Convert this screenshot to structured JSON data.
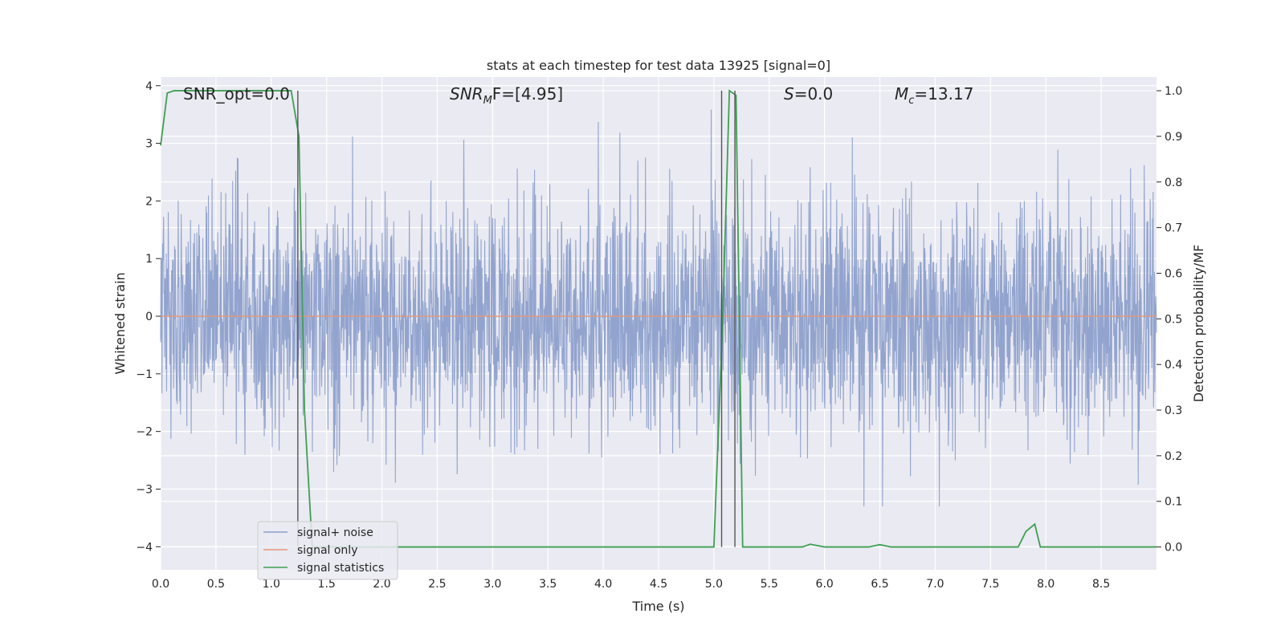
{
  "chart_data": {
    "type": "line",
    "title": "stats at each timestep for test data 13925 [signal=0]",
    "xlabel": "Time (s)",
    "ylabel": "Whitened strain",
    "ylabel_right": "Detection probability/MF",
    "xlim": [
      0,
      9.0
    ],
    "ylim": [
      -4.4,
      4.15
    ],
    "ylim_right": [
      -0.05,
      1.03
    ],
    "x_ticks": [
      "0.0",
      "0.5",
      "1.0",
      "1.5",
      "2.0",
      "2.5",
      "3.0",
      "3.5",
      "4.0",
      "4.5",
      "5.0",
      "5.5",
      "6.0",
      "6.5",
      "7.0",
      "7.5",
      "8.0",
      "8.5"
    ],
    "y_ticks": [
      "4",
      "3",
      "2",
      "1",
      "0",
      "−1",
      "−2",
      "−3",
      "−4"
    ],
    "y_right_ticks": [
      "1.0",
      "0.9",
      "0.8",
      "0.7",
      "0.6",
      "0.5",
      "0.4",
      "0.3",
      "0.2",
      "0.1",
      "0.0"
    ],
    "grid": true,
    "legend_placement": "lower-left",
    "annotations": {
      "snr_opt": "SNR_opt=0.0",
      "snr_mf_base": "SNR",
      "snr_mf_sub": "M",
      "snr_mf_rest": "F=[4.95]",
      "s_base": "S",
      "s_rest": "=0.0",
      "mc_base": "M",
      "mc_sub": "c",
      "mc_rest": "=13.17"
    },
    "vertical_markers": [
      1.24,
      5.07,
      5.19
    ],
    "series": [
      {
        "name": "signal+ noise",
        "color": "#8da0cb",
        "style": "noise",
        "y_std": 1.0,
        "time_range": [
          0,
          9.0
        ]
      },
      {
        "name": "signal only",
        "color": "#e5977a",
        "y_value": 0.0
      },
      {
        "name": "signal statistics",
        "color": "#3f9f53",
        "axis": "right",
        "points": [
          [
            0.0,
            0.88
          ],
          [
            0.06,
            0.995
          ],
          [
            0.12,
            1.0
          ],
          [
            0.5,
            1.0
          ],
          [
            1.0,
            1.0
          ],
          [
            1.18,
            1.0
          ],
          [
            1.25,
            0.9
          ],
          [
            1.3,
            0.3
          ],
          [
            1.37,
            0.0
          ],
          [
            2.0,
            0.0
          ],
          [
            3.0,
            0.0
          ],
          [
            4.0,
            0.0
          ],
          [
            5.0,
            0.0
          ],
          [
            5.08,
            0.5
          ],
          [
            5.14,
            1.0
          ],
          [
            5.17,
            0.995
          ],
          [
            5.2,
            0.99
          ],
          [
            5.26,
            0.0
          ],
          [
            5.5,
            0.0
          ],
          [
            5.8,
            0.0
          ],
          [
            5.87,
            0.006
          ],
          [
            6.0,
            0.0
          ],
          [
            6.4,
            0.0
          ],
          [
            6.5,
            0.005
          ],
          [
            6.6,
            0.0
          ],
          [
            7.0,
            0.0
          ],
          [
            7.75,
            0.0
          ],
          [
            7.82,
            0.034
          ],
          [
            7.9,
            0.05
          ],
          [
            7.95,
            0.0
          ],
          [
            8.5,
            0.0
          ],
          [
            9.0,
            0.0
          ]
        ]
      }
    ]
  }
}
